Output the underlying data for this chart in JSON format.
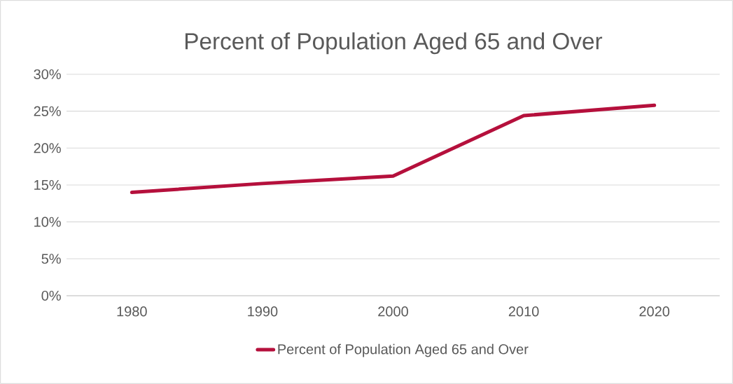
{
  "chart_data": {
    "type": "line",
    "title": "Percent of Population Aged 65 and Over",
    "categories": [
      "1980",
      "1990",
      "2000",
      "2010",
      "2020"
    ],
    "series": [
      {
        "name": "Percent of Population Aged 65 and Over",
        "color": "#b5103c",
        "values": [
          14,
          15.2,
          16.2,
          24.4,
          25.8
        ]
      }
    ],
    "ylim": [
      0,
      30
    ],
    "yticks": [
      {
        "value": 0,
        "label": "0%"
      },
      {
        "value": 5,
        "label": "5%"
      },
      {
        "value": 10,
        "label": "10%"
      },
      {
        "value": 15,
        "label": "15%"
      },
      {
        "value": 20,
        "label": "20%"
      },
      {
        "value": 25,
        "label": "25%"
      },
      {
        "value": 30,
        "label": "30%"
      }
    ],
    "grid": "y",
    "legend": "bottom",
    "marker": "none",
    "line_style": "solid"
  }
}
